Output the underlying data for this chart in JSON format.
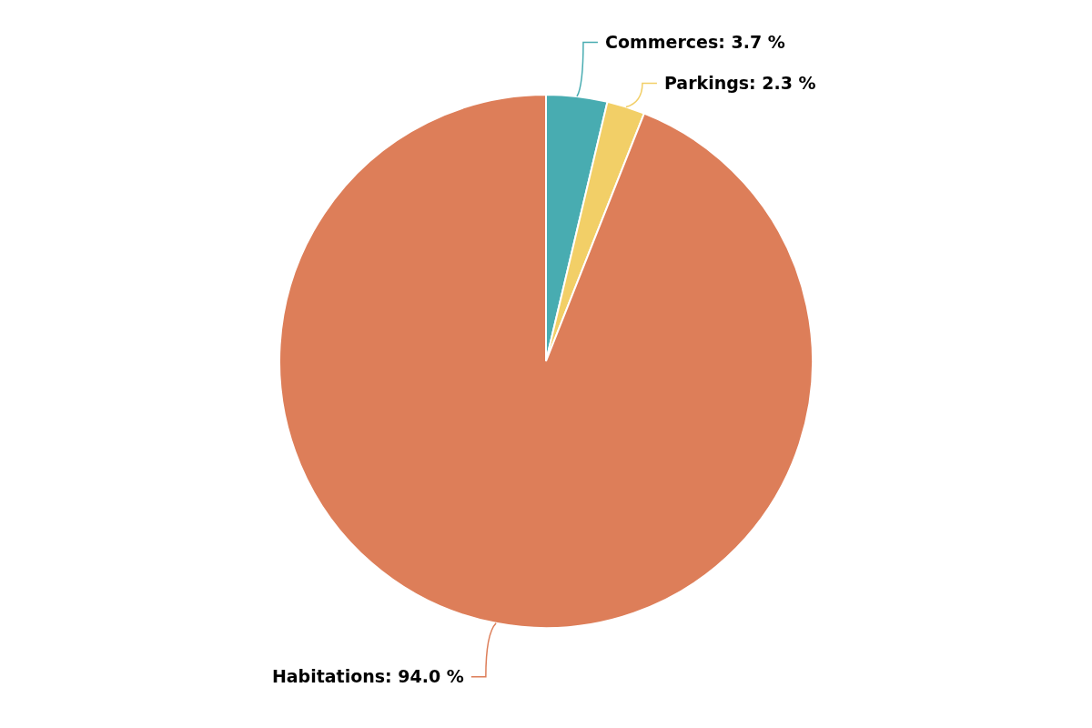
{
  "chart_data": {
    "type": "pie",
    "categories": [
      "Commerces",
      "Parkings",
      "Habitations"
    ],
    "values": [
      3.7,
      2.3,
      94.0
    ],
    "value_labels": [
      "3.7 %",
      "2.3 %",
      "94.0 %"
    ],
    "colors": [
      "#48acb1",
      "#f2cf67",
      "#dd7e59"
    ]
  }
}
